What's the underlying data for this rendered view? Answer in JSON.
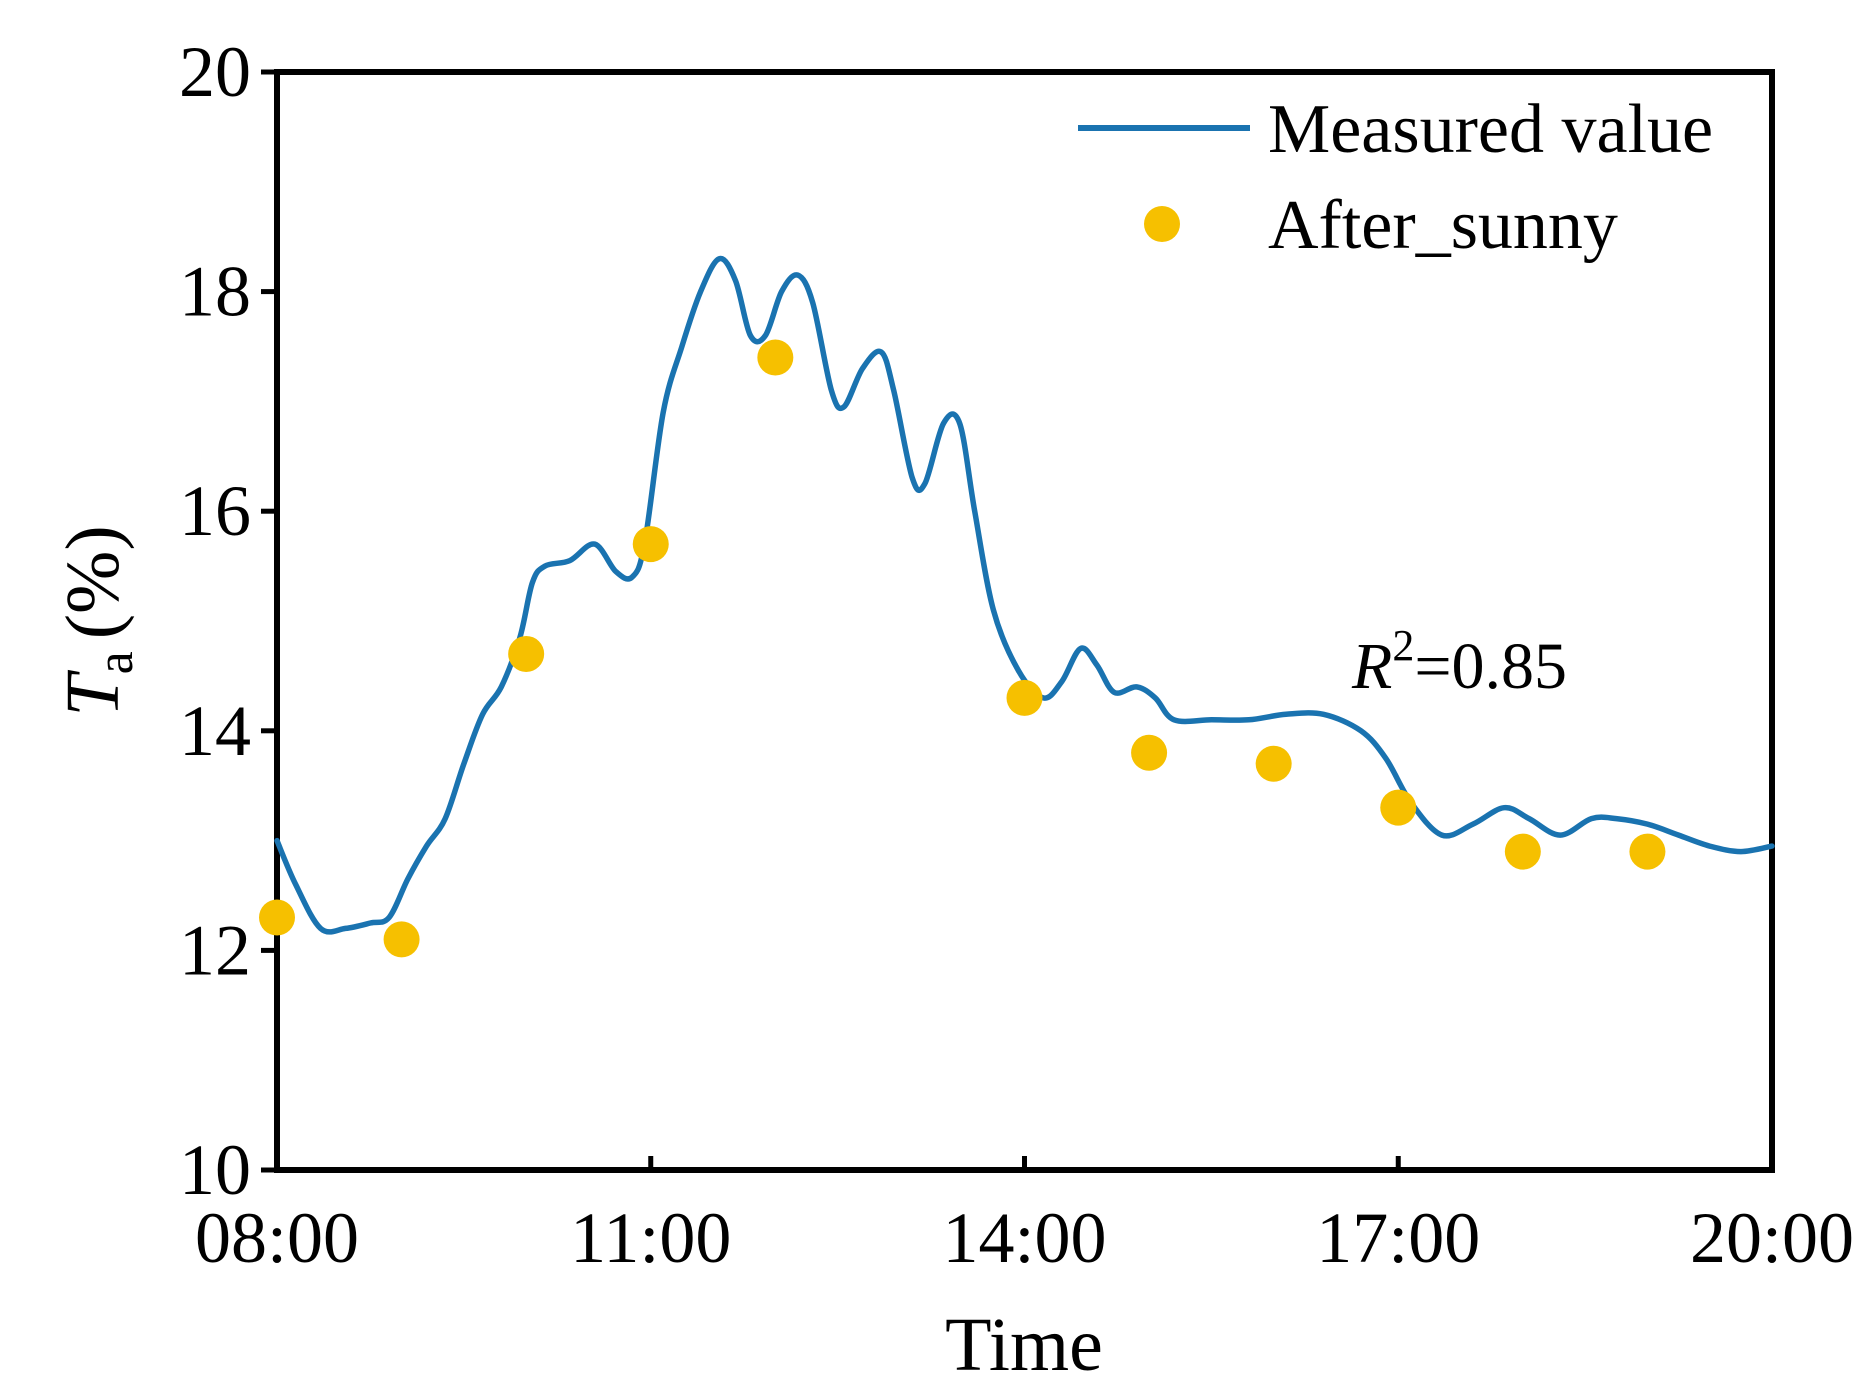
{
  "colors": {
    "measured": "#1a73b0",
    "after_sunny": "#f6c000",
    "axis": "#000000"
  },
  "chart_data": {
    "type": "line",
    "title": "",
    "xlabel": "Time",
    "ylabel_main": "T",
    "ylabel_sub": "a",
    "ylabel_unit": "(%)",
    "xlim_hours": [
      8,
      20
    ],
    "ylim": [
      10,
      20
    ],
    "x_ticks": [
      {
        "hour": 8,
        "label": "08:00"
      },
      {
        "hour": 11,
        "label": "11:00"
      },
      {
        "hour": 14,
        "label": "14:00"
      },
      {
        "hour": 17,
        "label": "17:00"
      },
      {
        "hour": 20,
        "label": "20:00"
      }
    ],
    "y_ticks": [
      {
        "value": 10,
        "label": "10"
      },
      {
        "value": 12,
        "label": "12"
      },
      {
        "value": 14,
        "label": "14"
      },
      {
        "value": 16,
        "label": "16"
      },
      {
        "value": 18,
        "label": "18"
      },
      {
        "value": 20,
        "label": "20"
      }
    ],
    "legend_position": "top-right",
    "grid": false,
    "series": [
      {
        "name": "Measured value",
        "style": "line",
        "points": [
          [
            8.0,
            13.0
          ],
          [
            8.15,
            12.6
          ],
          [
            8.35,
            12.2
          ],
          [
            8.55,
            12.2
          ],
          [
            8.75,
            12.25
          ],
          [
            8.9,
            12.3
          ],
          [
            9.05,
            12.65
          ],
          [
            9.2,
            12.95
          ],
          [
            9.35,
            13.2
          ],
          [
            9.5,
            13.7
          ],
          [
            9.65,
            14.15
          ],
          [
            9.8,
            14.4
          ],
          [
            9.95,
            14.85
          ],
          [
            10.05,
            15.35
          ],
          [
            10.15,
            15.5
          ],
          [
            10.35,
            15.55
          ],
          [
            10.55,
            15.7
          ],
          [
            10.72,
            15.45
          ],
          [
            10.85,
            15.4
          ],
          [
            10.95,
            15.7
          ],
          [
            11.1,
            16.9
          ],
          [
            11.25,
            17.5
          ],
          [
            11.4,
            18.0
          ],
          [
            11.55,
            18.3
          ],
          [
            11.68,
            18.1
          ],
          [
            11.8,
            17.6
          ],
          [
            11.92,
            17.6
          ],
          [
            12.05,
            18.0
          ],
          [
            12.18,
            18.15
          ],
          [
            12.3,
            17.9
          ],
          [
            12.45,
            17.1
          ],
          [
            12.55,
            16.95
          ],
          [
            12.7,
            17.3
          ],
          [
            12.85,
            17.45
          ],
          [
            12.95,
            17.1
          ],
          [
            13.1,
            16.3
          ],
          [
            13.2,
            16.25
          ],
          [
            13.35,
            16.8
          ],
          [
            13.48,
            16.8
          ],
          [
            13.6,
            16.0
          ],
          [
            13.75,
            15.1
          ],
          [
            13.95,
            14.55
          ],
          [
            14.15,
            14.3
          ],
          [
            14.3,
            14.45
          ],
          [
            14.45,
            14.75
          ],
          [
            14.58,
            14.6
          ],
          [
            14.72,
            14.35
          ],
          [
            14.9,
            14.4
          ],
          [
            15.05,
            14.3
          ],
          [
            15.2,
            14.1
          ],
          [
            15.5,
            14.1
          ],
          [
            15.8,
            14.1
          ],
          [
            16.1,
            14.15
          ],
          [
            16.4,
            14.15
          ],
          [
            16.7,
            14.0
          ],
          [
            16.9,
            13.75
          ],
          [
            17.1,
            13.35
          ],
          [
            17.35,
            13.05
          ],
          [
            17.6,
            13.15
          ],
          [
            17.85,
            13.3
          ],
          [
            18.05,
            13.2
          ],
          [
            18.3,
            13.05
          ],
          [
            18.55,
            13.2
          ],
          [
            18.75,
            13.2
          ],
          [
            19.0,
            13.15
          ],
          [
            19.25,
            13.05
          ],
          [
            19.5,
            12.95
          ],
          [
            19.75,
            12.9
          ],
          [
            20.0,
            12.95
          ]
        ]
      },
      {
        "name": "After_sunny",
        "style": "scatter",
        "points": [
          [
            8.0,
            12.3
          ],
          [
            9.0,
            12.1
          ],
          [
            10.0,
            14.7
          ],
          [
            11.0,
            15.7
          ],
          [
            12.0,
            17.4
          ],
          [
            14.0,
            14.3
          ],
          [
            15.0,
            13.8
          ],
          [
            16.0,
            13.7
          ],
          [
            17.0,
            13.3
          ],
          [
            18.0,
            12.9
          ],
          [
            19.0,
            12.9
          ]
        ]
      }
    ],
    "annotation": {
      "italic": "R",
      "superscript": "2",
      "rest": "=0.85"
    }
  }
}
